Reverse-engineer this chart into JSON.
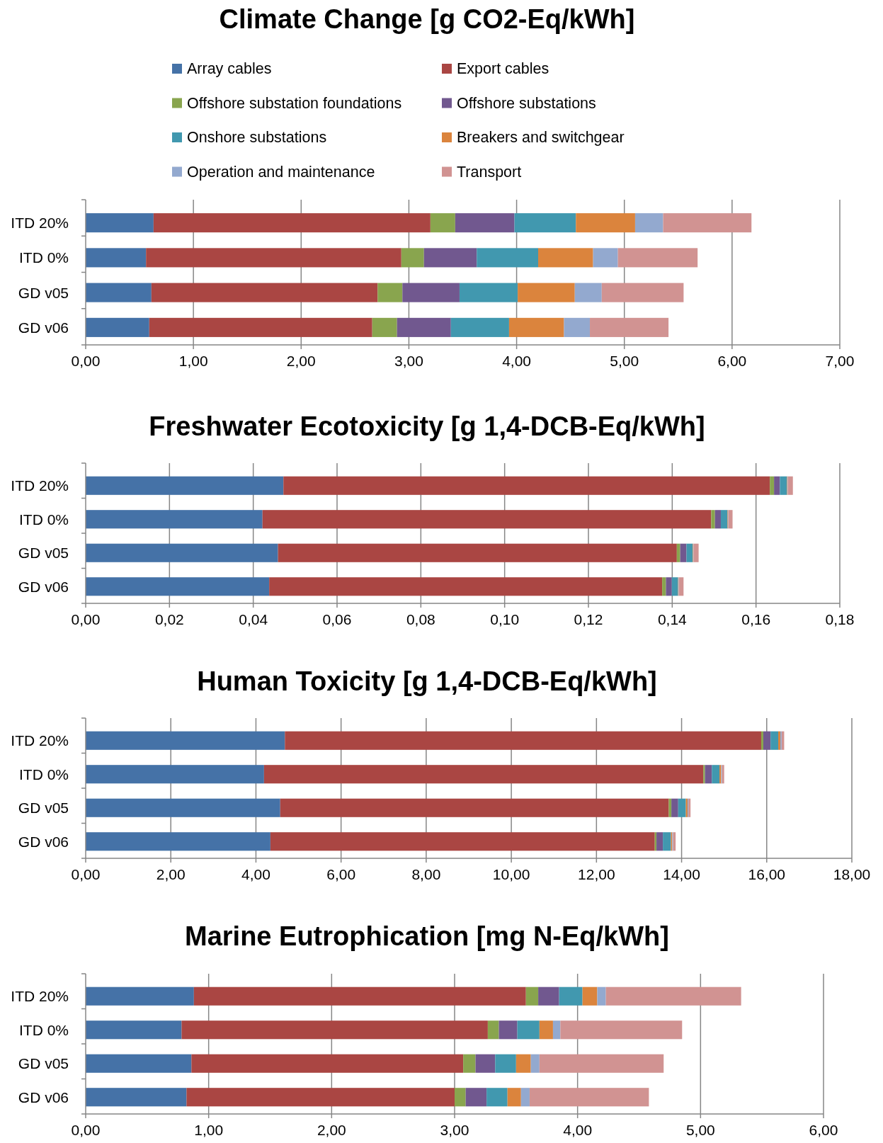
{
  "chart_data": [
    {
      "type": "bar",
      "orientation": "horizontal",
      "stacked": true,
      "title": "Climate Change [g CO2-Eq/kWh]",
      "categories": [
        "ITD 20%",
        "ITD 0%",
        "GD v05",
        "GD v06"
      ],
      "legend": "top",
      "grid": "x",
      "xlim": [
        0,
        7
      ],
      "xticks": [
        {
          "value": 0,
          "label": "0,00"
        },
        {
          "value": 1,
          "label": "1,00"
        },
        {
          "value": 2,
          "label": "2,00"
        },
        {
          "value": 3,
          "label": "3,00"
        },
        {
          "value": 4,
          "label": "4,00"
        },
        {
          "value": 5,
          "label": "5,00"
        },
        {
          "value": 6,
          "label": "6,00"
        },
        {
          "value": 7,
          "label": "7,00"
        }
      ],
      "series": [
        {
          "name": "Array cables",
          "color": "#4572a7",
          "values": [
            0.63,
            0.56,
            0.61,
            0.59
          ]
        },
        {
          "name": "Export cables",
          "color": "#aa4643",
          "values": [
            2.57,
            2.37,
            2.1,
            2.07
          ]
        },
        {
          "name": "Offshore substation foundations",
          "color": "#89a54e",
          "values": [
            0.23,
            0.21,
            0.23,
            0.23
          ]
        },
        {
          "name": "Offshore substations",
          "color": "#71588f",
          "values": [
            0.55,
            0.49,
            0.53,
            0.5
          ]
        },
        {
          "name": "Onshore substations",
          "color": "#4198af",
          "values": [
            0.57,
            0.57,
            0.54,
            0.54
          ]
        },
        {
          "name": "Breakers and switchgear",
          "color": "#db843d",
          "values": [
            0.55,
            0.51,
            0.53,
            0.51
          ]
        },
        {
          "name": "Operation and maintenance",
          "color": "#93a9cf",
          "values": [
            0.26,
            0.23,
            0.25,
            0.24
          ]
        },
        {
          "name": "Transport",
          "color": "#d19392",
          "values": [
            0.82,
            0.74,
            0.76,
            0.73
          ]
        }
      ]
    },
    {
      "type": "bar",
      "orientation": "horizontal",
      "stacked": true,
      "title": "Freshwater Ecotoxicity [g 1,4-DCB-Eq/kWh]",
      "categories": [
        "ITD 20%",
        "ITD 0%",
        "GD v05",
        "GD v06"
      ],
      "grid": "x",
      "xlim": [
        0,
        0.18
      ],
      "xticks": [
        {
          "value": 0,
          "label": "0,00"
        },
        {
          "value": 0.02,
          "label": "0,02"
        },
        {
          "value": 0.04,
          "label": "0,04"
        },
        {
          "value": 0.06,
          "label": "0,06"
        },
        {
          "value": 0.08,
          "label": "0,08"
        },
        {
          "value": 0.1,
          "label": "0,10"
        },
        {
          "value": 0.12,
          "label": "0,12"
        },
        {
          "value": 0.14,
          "label": "0,14"
        },
        {
          "value": 0.16,
          "label": "0,16"
        },
        {
          "value": 0.18,
          "label": "0,18"
        }
      ],
      "series": [
        {
          "color": "#4572a7",
          "values": [
            0.0472,
            0.0422,
            0.0459,
            0.0438
          ]
        },
        {
          "color": "#aa4643",
          "values": [
            0.1161,
            0.1071,
            0.0952,
            0.0938
          ]
        },
        {
          "color": "#89a54e",
          "values": [
            0.001,
            0.0009,
            0.0008,
            0.0009
          ]
        },
        {
          "color": "#71588f",
          "values": [
            0.0014,
            0.0014,
            0.0015,
            0.0014
          ]
        },
        {
          "color": "#4198af",
          "values": [
            0.0017,
            0.0016,
            0.0015,
            0.0015
          ]
        },
        {
          "color": "#db843d",
          "values": [
            0.0001,
            0.0001,
            0.0001,
            0.0001
          ]
        },
        {
          "color": "#93a9cf",
          "values": [
            0.0001,
            0.0001,
            0.0001,
            0.0001
          ]
        },
        {
          "color": "#d19392",
          "values": [
            0.0012,
            0.001,
            0.0012,
            0.0011
          ]
        }
      ]
    },
    {
      "type": "bar",
      "orientation": "horizontal",
      "stacked": true,
      "title": "Human Toxicity [g 1,4-DCB-Eq/kWh]",
      "categories": [
        "ITD 20%",
        "ITD 0%",
        "GD v05",
        "GD v06"
      ],
      "grid": "x",
      "xlim": [
        0,
        18
      ],
      "xticks": [
        {
          "value": 0,
          "label": "0,00"
        },
        {
          "value": 2,
          "label": "2,00"
        },
        {
          "value": 4,
          "label": "4,00"
        },
        {
          "value": 6,
          "label": "6,00"
        },
        {
          "value": 8,
          "label": "8,00"
        },
        {
          "value": 10,
          "label": "10,00"
        },
        {
          "value": 12,
          "label": "12,00"
        },
        {
          "value": 14,
          "label": "14,00"
        },
        {
          "value": 16,
          "label": "16,00"
        },
        {
          "value": 18,
          "label": "18,00"
        }
      ],
      "series": [
        {
          "color": "#4572a7",
          "values": [
            4.68,
            4.19,
            4.57,
            4.34
          ]
        },
        {
          "color": "#aa4643",
          "values": [
            11.19,
            10.32,
            9.13,
            9.03
          ]
        },
        {
          "color": "#89a54e",
          "values": [
            0.05,
            0.04,
            0.06,
            0.04
          ]
        },
        {
          "color": "#71588f",
          "values": [
            0.17,
            0.16,
            0.16,
            0.15
          ]
        },
        {
          "color": "#4198af",
          "values": [
            0.18,
            0.18,
            0.18,
            0.19
          ]
        },
        {
          "color": "#db843d",
          "values": [
            0.05,
            0.04,
            0.04,
            0.03
          ]
        },
        {
          "color": "#93a9cf",
          "values": [
            0.03,
            0.02,
            0.02,
            0.02
          ]
        },
        {
          "color": "#d19392",
          "values": [
            0.06,
            0.05,
            0.05,
            0.06
          ]
        }
      ]
    },
    {
      "type": "bar",
      "orientation": "horizontal",
      "stacked": true,
      "title": "Marine Eutrophication [mg N-Eq/kWh]",
      "categories": [
        "ITD 20%",
        "ITD 0%",
        "GD v05",
        "GD v06"
      ],
      "grid": "x",
      "xlim": [
        0,
        6
      ],
      "xticks": [
        {
          "value": 0,
          "label": "0,00"
        },
        {
          "value": 1,
          "label": "1,00"
        },
        {
          "value": 2,
          "label": "2,00"
        },
        {
          "value": 3,
          "label": "3,00"
        },
        {
          "value": 4,
          "label": "4,00"
        },
        {
          "value": 5,
          "label": "5,00"
        },
        {
          "value": 6,
          "label": "6,00"
        }
      ],
      "series": [
        {
          "color": "#4572a7",
          "values": [
            0.88,
            0.78,
            0.86,
            0.82
          ]
        },
        {
          "color": "#aa4643",
          "values": [
            2.7,
            2.49,
            2.21,
            2.18
          ]
        },
        {
          "color": "#89a54e",
          "values": [
            0.1,
            0.09,
            0.1,
            0.09
          ]
        },
        {
          "color": "#71588f",
          "values": [
            0.17,
            0.15,
            0.16,
            0.17
          ]
        },
        {
          "color": "#4198af",
          "values": [
            0.19,
            0.18,
            0.17,
            0.17
          ]
        },
        {
          "color": "#db843d",
          "values": [
            0.12,
            0.11,
            0.12,
            0.11
          ]
        },
        {
          "color": "#93a9cf",
          "values": [
            0.07,
            0.06,
            0.07,
            0.07
          ]
        },
        {
          "color": "#d19392",
          "values": [
            1.1,
            0.99,
            1.01,
            0.97
          ]
        }
      ]
    }
  ]
}
